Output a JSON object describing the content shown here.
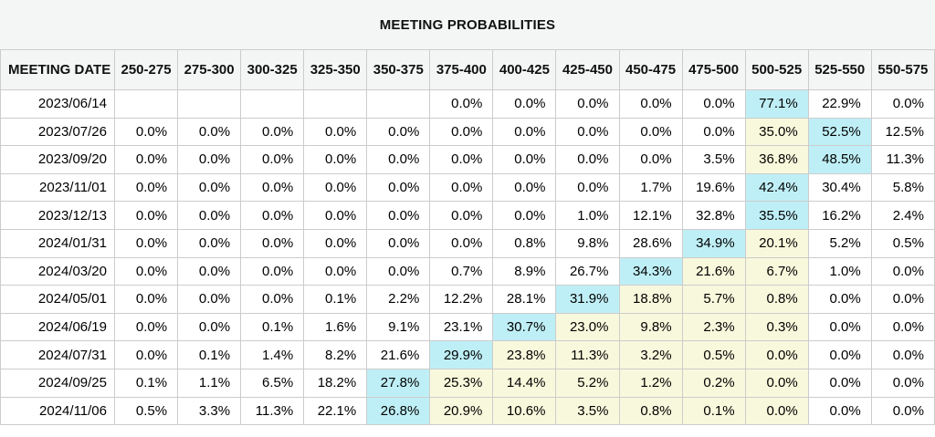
{
  "title": "MEETING PROBABILITIES",
  "colors": {
    "cyan": "#bfeff6",
    "yellow": "#f8f8dc"
  },
  "table": {
    "date_column_header": "MEETING DATE",
    "rate_range_headers": [
      "250-275",
      "275-300",
      "300-325",
      "325-350",
      "350-375",
      "375-400",
      "400-425",
      "425-450",
      "450-475",
      "475-500",
      "500-525",
      "525-550",
      "550-575"
    ],
    "rows": [
      {
        "date": "2023/06/14",
        "cells": [
          {
            "v": ""
          },
          {
            "v": ""
          },
          {
            "v": ""
          },
          {
            "v": ""
          },
          {
            "v": ""
          },
          {
            "v": "0.0%"
          },
          {
            "v": "0.0%"
          },
          {
            "v": "0.0%"
          },
          {
            "v": "0.0%"
          },
          {
            "v": "0.0%"
          },
          {
            "v": "77.1%",
            "h": "cyan"
          },
          {
            "v": "22.9%"
          },
          {
            "v": "0.0%"
          }
        ]
      },
      {
        "date": "2023/07/26",
        "cells": [
          {
            "v": "0.0%"
          },
          {
            "v": "0.0%"
          },
          {
            "v": "0.0%"
          },
          {
            "v": "0.0%"
          },
          {
            "v": "0.0%"
          },
          {
            "v": "0.0%"
          },
          {
            "v": "0.0%"
          },
          {
            "v": "0.0%"
          },
          {
            "v": "0.0%"
          },
          {
            "v": "0.0%"
          },
          {
            "v": "35.0%",
            "h": "yellow"
          },
          {
            "v": "52.5%",
            "h": "cyan"
          },
          {
            "v": "12.5%"
          }
        ]
      },
      {
        "date": "2023/09/20",
        "cells": [
          {
            "v": "0.0%"
          },
          {
            "v": "0.0%"
          },
          {
            "v": "0.0%"
          },
          {
            "v": "0.0%"
          },
          {
            "v": "0.0%"
          },
          {
            "v": "0.0%"
          },
          {
            "v": "0.0%"
          },
          {
            "v": "0.0%"
          },
          {
            "v": "0.0%"
          },
          {
            "v": "3.5%"
          },
          {
            "v": "36.8%",
            "h": "yellow"
          },
          {
            "v": "48.5%",
            "h": "cyan"
          },
          {
            "v": "11.3%"
          }
        ]
      },
      {
        "date": "2023/11/01",
        "cells": [
          {
            "v": "0.0%"
          },
          {
            "v": "0.0%"
          },
          {
            "v": "0.0%"
          },
          {
            "v": "0.0%"
          },
          {
            "v": "0.0%"
          },
          {
            "v": "0.0%"
          },
          {
            "v": "0.0%"
          },
          {
            "v": "0.0%"
          },
          {
            "v": "1.7%"
          },
          {
            "v": "19.6%"
          },
          {
            "v": "42.4%",
            "h": "cyan"
          },
          {
            "v": "30.4%"
          },
          {
            "v": "5.8%"
          }
        ]
      },
      {
        "date": "2023/12/13",
        "cells": [
          {
            "v": "0.0%"
          },
          {
            "v": "0.0%"
          },
          {
            "v": "0.0%"
          },
          {
            "v": "0.0%"
          },
          {
            "v": "0.0%"
          },
          {
            "v": "0.0%"
          },
          {
            "v": "0.0%"
          },
          {
            "v": "1.0%"
          },
          {
            "v": "12.1%"
          },
          {
            "v": "32.8%"
          },
          {
            "v": "35.5%",
            "h": "cyan"
          },
          {
            "v": "16.2%"
          },
          {
            "v": "2.4%"
          }
        ]
      },
      {
        "date": "2024/01/31",
        "cells": [
          {
            "v": "0.0%"
          },
          {
            "v": "0.0%"
          },
          {
            "v": "0.0%"
          },
          {
            "v": "0.0%"
          },
          {
            "v": "0.0%"
          },
          {
            "v": "0.0%"
          },
          {
            "v": "0.8%"
          },
          {
            "v": "9.8%"
          },
          {
            "v": "28.6%"
          },
          {
            "v": "34.9%",
            "h": "cyan"
          },
          {
            "v": "20.1%",
            "h": "yellow"
          },
          {
            "v": "5.2%"
          },
          {
            "v": "0.5%"
          }
        ]
      },
      {
        "date": "2024/03/20",
        "cells": [
          {
            "v": "0.0%"
          },
          {
            "v": "0.0%"
          },
          {
            "v": "0.0%"
          },
          {
            "v": "0.0%"
          },
          {
            "v": "0.0%"
          },
          {
            "v": "0.7%"
          },
          {
            "v": "8.9%"
          },
          {
            "v": "26.7%"
          },
          {
            "v": "34.3%",
            "h": "cyan"
          },
          {
            "v": "21.6%",
            "h": "yellow"
          },
          {
            "v": "6.7%",
            "h": "yellow"
          },
          {
            "v": "1.0%"
          },
          {
            "v": "0.0%"
          }
        ]
      },
      {
        "date": "2024/05/01",
        "cells": [
          {
            "v": "0.0%"
          },
          {
            "v": "0.0%"
          },
          {
            "v": "0.0%"
          },
          {
            "v": "0.1%"
          },
          {
            "v": "2.2%"
          },
          {
            "v": "12.2%"
          },
          {
            "v": "28.1%"
          },
          {
            "v": "31.9%",
            "h": "cyan"
          },
          {
            "v": "18.8%",
            "h": "yellow"
          },
          {
            "v": "5.7%",
            "h": "yellow"
          },
          {
            "v": "0.8%",
            "h": "yellow"
          },
          {
            "v": "0.0%"
          },
          {
            "v": "0.0%"
          }
        ]
      },
      {
        "date": "2024/06/19",
        "cells": [
          {
            "v": "0.0%"
          },
          {
            "v": "0.0%"
          },
          {
            "v": "0.1%"
          },
          {
            "v": "1.6%"
          },
          {
            "v": "9.1%"
          },
          {
            "v": "23.1%"
          },
          {
            "v": "30.7%",
            "h": "cyan"
          },
          {
            "v": "23.0%",
            "h": "yellow"
          },
          {
            "v": "9.8%",
            "h": "yellow"
          },
          {
            "v": "2.3%",
            "h": "yellow"
          },
          {
            "v": "0.3%",
            "h": "yellow"
          },
          {
            "v": "0.0%"
          },
          {
            "v": "0.0%"
          }
        ]
      },
      {
        "date": "2024/07/31",
        "cells": [
          {
            "v": "0.0%"
          },
          {
            "v": "0.1%"
          },
          {
            "v": "1.4%"
          },
          {
            "v": "8.2%"
          },
          {
            "v": "21.6%"
          },
          {
            "v": "29.9%",
            "h": "cyan"
          },
          {
            "v": "23.8%",
            "h": "yellow"
          },
          {
            "v": "11.3%",
            "h": "yellow"
          },
          {
            "v": "3.2%",
            "h": "yellow"
          },
          {
            "v": "0.5%",
            "h": "yellow"
          },
          {
            "v": "0.0%",
            "h": "yellow"
          },
          {
            "v": "0.0%"
          },
          {
            "v": "0.0%"
          }
        ]
      },
      {
        "date": "2024/09/25",
        "cells": [
          {
            "v": "0.1%"
          },
          {
            "v": "1.1%"
          },
          {
            "v": "6.5%"
          },
          {
            "v": "18.2%"
          },
          {
            "v": "27.8%",
            "h": "cyan"
          },
          {
            "v": "25.3%",
            "h": "yellow"
          },
          {
            "v": "14.4%",
            "h": "yellow"
          },
          {
            "v": "5.2%",
            "h": "yellow"
          },
          {
            "v": "1.2%",
            "h": "yellow"
          },
          {
            "v": "0.2%",
            "h": "yellow"
          },
          {
            "v": "0.0%",
            "h": "yellow"
          },
          {
            "v": "0.0%"
          },
          {
            "v": "0.0%"
          }
        ]
      },
      {
        "date": "2024/11/06",
        "cells": [
          {
            "v": "0.5%"
          },
          {
            "v": "3.3%"
          },
          {
            "v": "11.3%"
          },
          {
            "v": "22.1%"
          },
          {
            "v": "26.8%",
            "h": "cyan"
          },
          {
            "v": "20.9%",
            "h": "yellow"
          },
          {
            "v": "10.6%",
            "h": "yellow"
          },
          {
            "v": "3.5%",
            "h": "yellow"
          },
          {
            "v": "0.8%",
            "h": "yellow"
          },
          {
            "v": "0.1%",
            "h": "yellow"
          },
          {
            "v": "0.0%",
            "h": "yellow"
          },
          {
            "v": "0.0%"
          },
          {
            "v": "0.0%"
          }
        ]
      }
    ]
  }
}
